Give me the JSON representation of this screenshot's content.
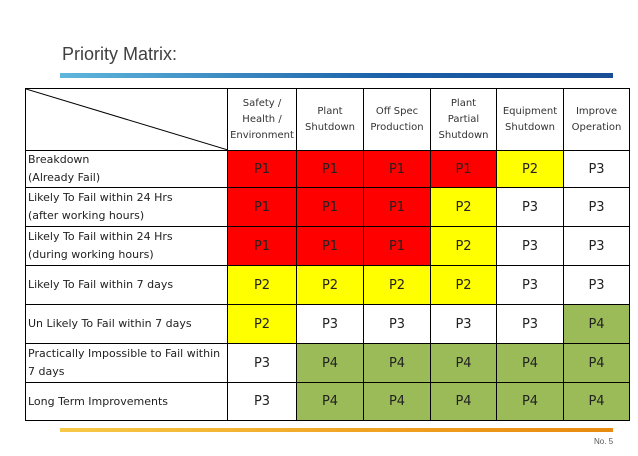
{
  "title": "Priority Matrix:",
  "page_number": "No. 5",
  "columns": [
    "Safety / Health / Environment",
    "Plant Shutdown",
    "Off Spec Production",
    "Plant Partial Shutdown",
    "Equipment Shutdown",
    "Improve Operation"
  ],
  "column_lines": [
    [
      "Safety /",
      "Health /",
      "Environment"
    ],
    [
      "Plant",
      "Shutdown"
    ],
    [
      "Off Spec",
      "Production"
    ],
    [
      "Plant",
      "Partial",
      "Shutdown"
    ],
    [
      "Equipment",
      "Shutdown"
    ],
    [
      "Improve",
      "Operation"
    ]
  ],
  "rows": [
    {
      "label_lines": [
        "Breakdown",
        "(Already Fail)"
      ],
      "cells": [
        "P1",
        "P1",
        "P1",
        "P1",
        "P2",
        "P3"
      ]
    },
    {
      "label_lines": [
        "Likely To Fail within 24 Hrs",
        "(after working hours)"
      ],
      "cells": [
        "P1",
        "P1",
        "P1",
        "P2",
        "P3",
        "P3"
      ]
    },
    {
      "label_lines": [
        "Likely To Fail within 24 Hrs",
        "(during working hours)"
      ],
      "cells": [
        "P1",
        "P1",
        "P1",
        "P2",
        "P3",
        "P3"
      ]
    },
    {
      "label_lines": [
        "Likely To Fail within 7 days"
      ],
      "cells": [
        "P2",
        "P2",
        "P2",
        "P2",
        "P3",
        "P3"
      ]
    },
    {
      "label_lines": [
        "Un Likely To Fail within 7 days"
      ],
      "cells": [
        "P2",
        "P3",
        "P3",
        "P3",
        "P3",
        "P4"
      ]
    },
    {
      "label_lines": [
        "Practically Impossible to Fail within",
        "7 days"
      ],
      "cells": [
        "P3",
        "P4",
        "P4",
        "P4",
        "P4",
        "P4"
      ]
    },
    {
      "label_lines": [
        "Long Term Improvements"
      ],
      "cells": [
        "P3",
        "P4",
        "P4",
        "P4",
        "P4",
        "P4"
      ]
    }
  ],
  "priority_colors": {
    "P1": "#ff0000",
    "P2": "#ffff00",
    "P3": "#ffffff",
    "P4": "#9bbb59"
  }
}
